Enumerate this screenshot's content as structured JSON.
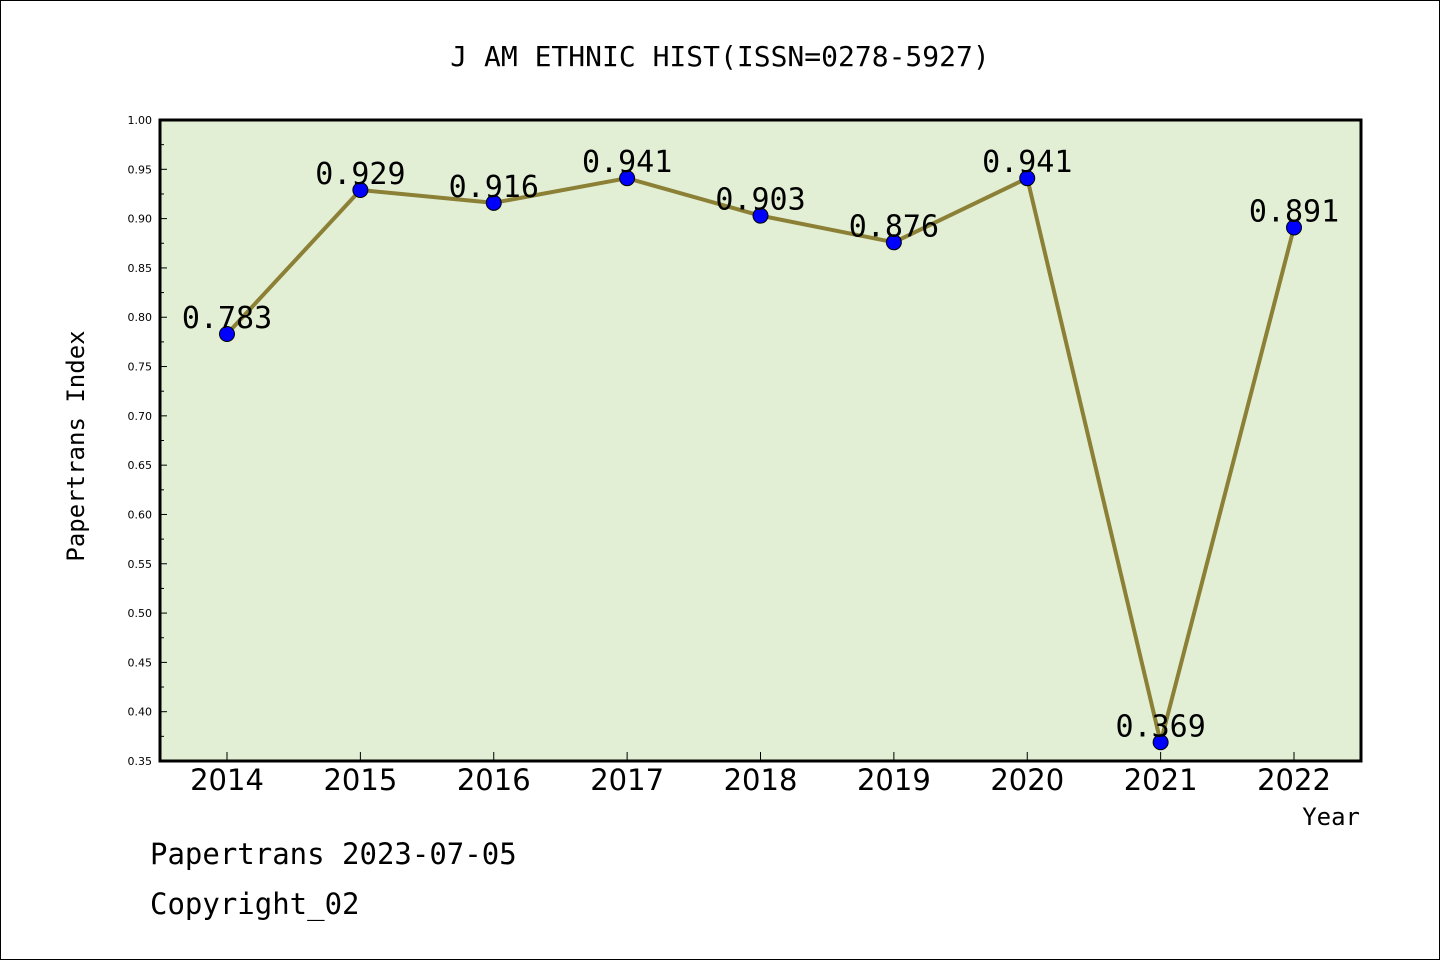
{
  "chart_data": {
    "type": "line",
    "title": "J AM ETHNIC HIST(ISSN=0278-5927)",
    "xlabel": "Year",
    "ylabel": "Papertrans Index",
    "categories": [
      "2014",
      "2015",
      "2016",
      "2017",
      "2018",
      "2019",
      "2020",
      "2021",
      "2022"
    ],
    "values": [
      0.783,
      0.929,
      0.916,
      0.941,
      0.903,
      0.876,
      0.941,
      0.369,
      0.891
    ],
    "data_labels": [
      "0.783",
      "0.929",
      "0.916",
      "0.941",
      "0.903",
      "0.876",
      "0.941",
      "0.369",
      "0.891"
    ],
    "ylim": [
      0.35,
      1.0
    ],
    "yticks": [
      "0.35",
      "0.40",
      "0.45",
      "0.50",
      "0.55",
      "0.60",
      "0.65",
      "0.70",
      "0.75",
      "0.80",
      "0.85",
      "0.90",
      "0.95",
      "1.00"
    ],
    "grid": false,
    "colors": {
      "plot_background": "#e2efd5",
      "line": "#8b8035",
      "marker": "#0000ff"
    }
  },
  "footer": {
    "line1": "Papertrans 2023-07-05",
    "line2": "Copyright_02"
  }
}
